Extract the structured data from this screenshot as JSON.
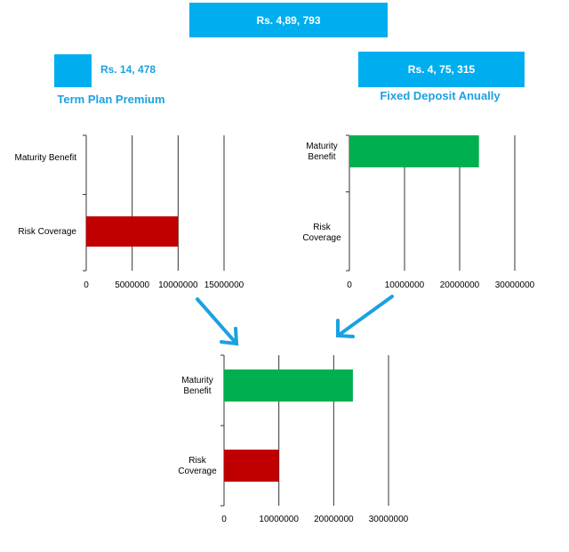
{
  "summary": {
    "total_label": "Rs. 4,89, 793",
    "term_plan_value": "Rs. 14, 478",
    "term_plan_caption": "Term Plan Premium",
    "fd_value": "Rs. 4, 75, 315",
    "fd_caption": "Fixed Deposit Anually"
  },
  "colors": {
    "box": "#00aeef",
    "caption": "#1ba1e2",
    "arrow": "#1ba1e2",
    "maturity_bar": "#00b050",
    "risk_bar": "#c00000"
  },
  "icons": [
    "arrow-down-right-icon",
    "arrow-down-left-icon"
  ],
  "chart_data": [
    {
      "type": "bar",
      "orientation": "horizontal",
      "categories": [
        "Maturity Benefit",
        "Risk Coverage"
      ],
      "category_lines": [
        [
          "Maturity Benefit"
        ],
        [
          "Risk Coverage"
        ]
      ],
      "values": [
        0,
        10000000
      ],
      "bar_colors": [
        "#00b050",
        "#c00000"
      ],
      "ticks": [
        0,
        5000000,
        10000000,
        15000000
      ],
      "xlim": [
        0,
        15000000
      ],
      "grid": true
    },
    {
      "type": "bar",
      "orientation": "horizontal",
      "categories": [
        "Maturity Benefit",
        "Risk Coverage"
      ],
      "category_lines": [
        [
          "Maturity",
          "Benefit"
        ],
        [
          "Risk",
          "Coverage"
        ]
      ],
      "values": [
        23500000,
        0
      ],
      "bar_colors": [
        "#00b050",
        "#c00000"
      ],
      "ticks": [
        0,
        10000000,
        20000000,
        30000000
      ],
      "xlim": [
        0,
        30000000
      ],
      "grid": true
    },
    {
      "type": "bar",
      "orientation": "horizontal",
      "categories": [
        "Maturity Benefit",
        "Risk Coverage"
      ],
      "category_lines": [
        [
          "Maturity",
          "Benefit"
        ],
        [
          "Risk",
          "Coverage"
        ]
      ],
      "values": [
        23500000,
        10000000
      ],
      "bar_colors": [
        "#00b050",
        "#c00000"
      ],
      "ticks": [
        0,
        10000000,
        20000000,
        30000000
      ],
      "xlim": [
        0,
        30000000
      ],
      "grid": true
    }
  ]
}
